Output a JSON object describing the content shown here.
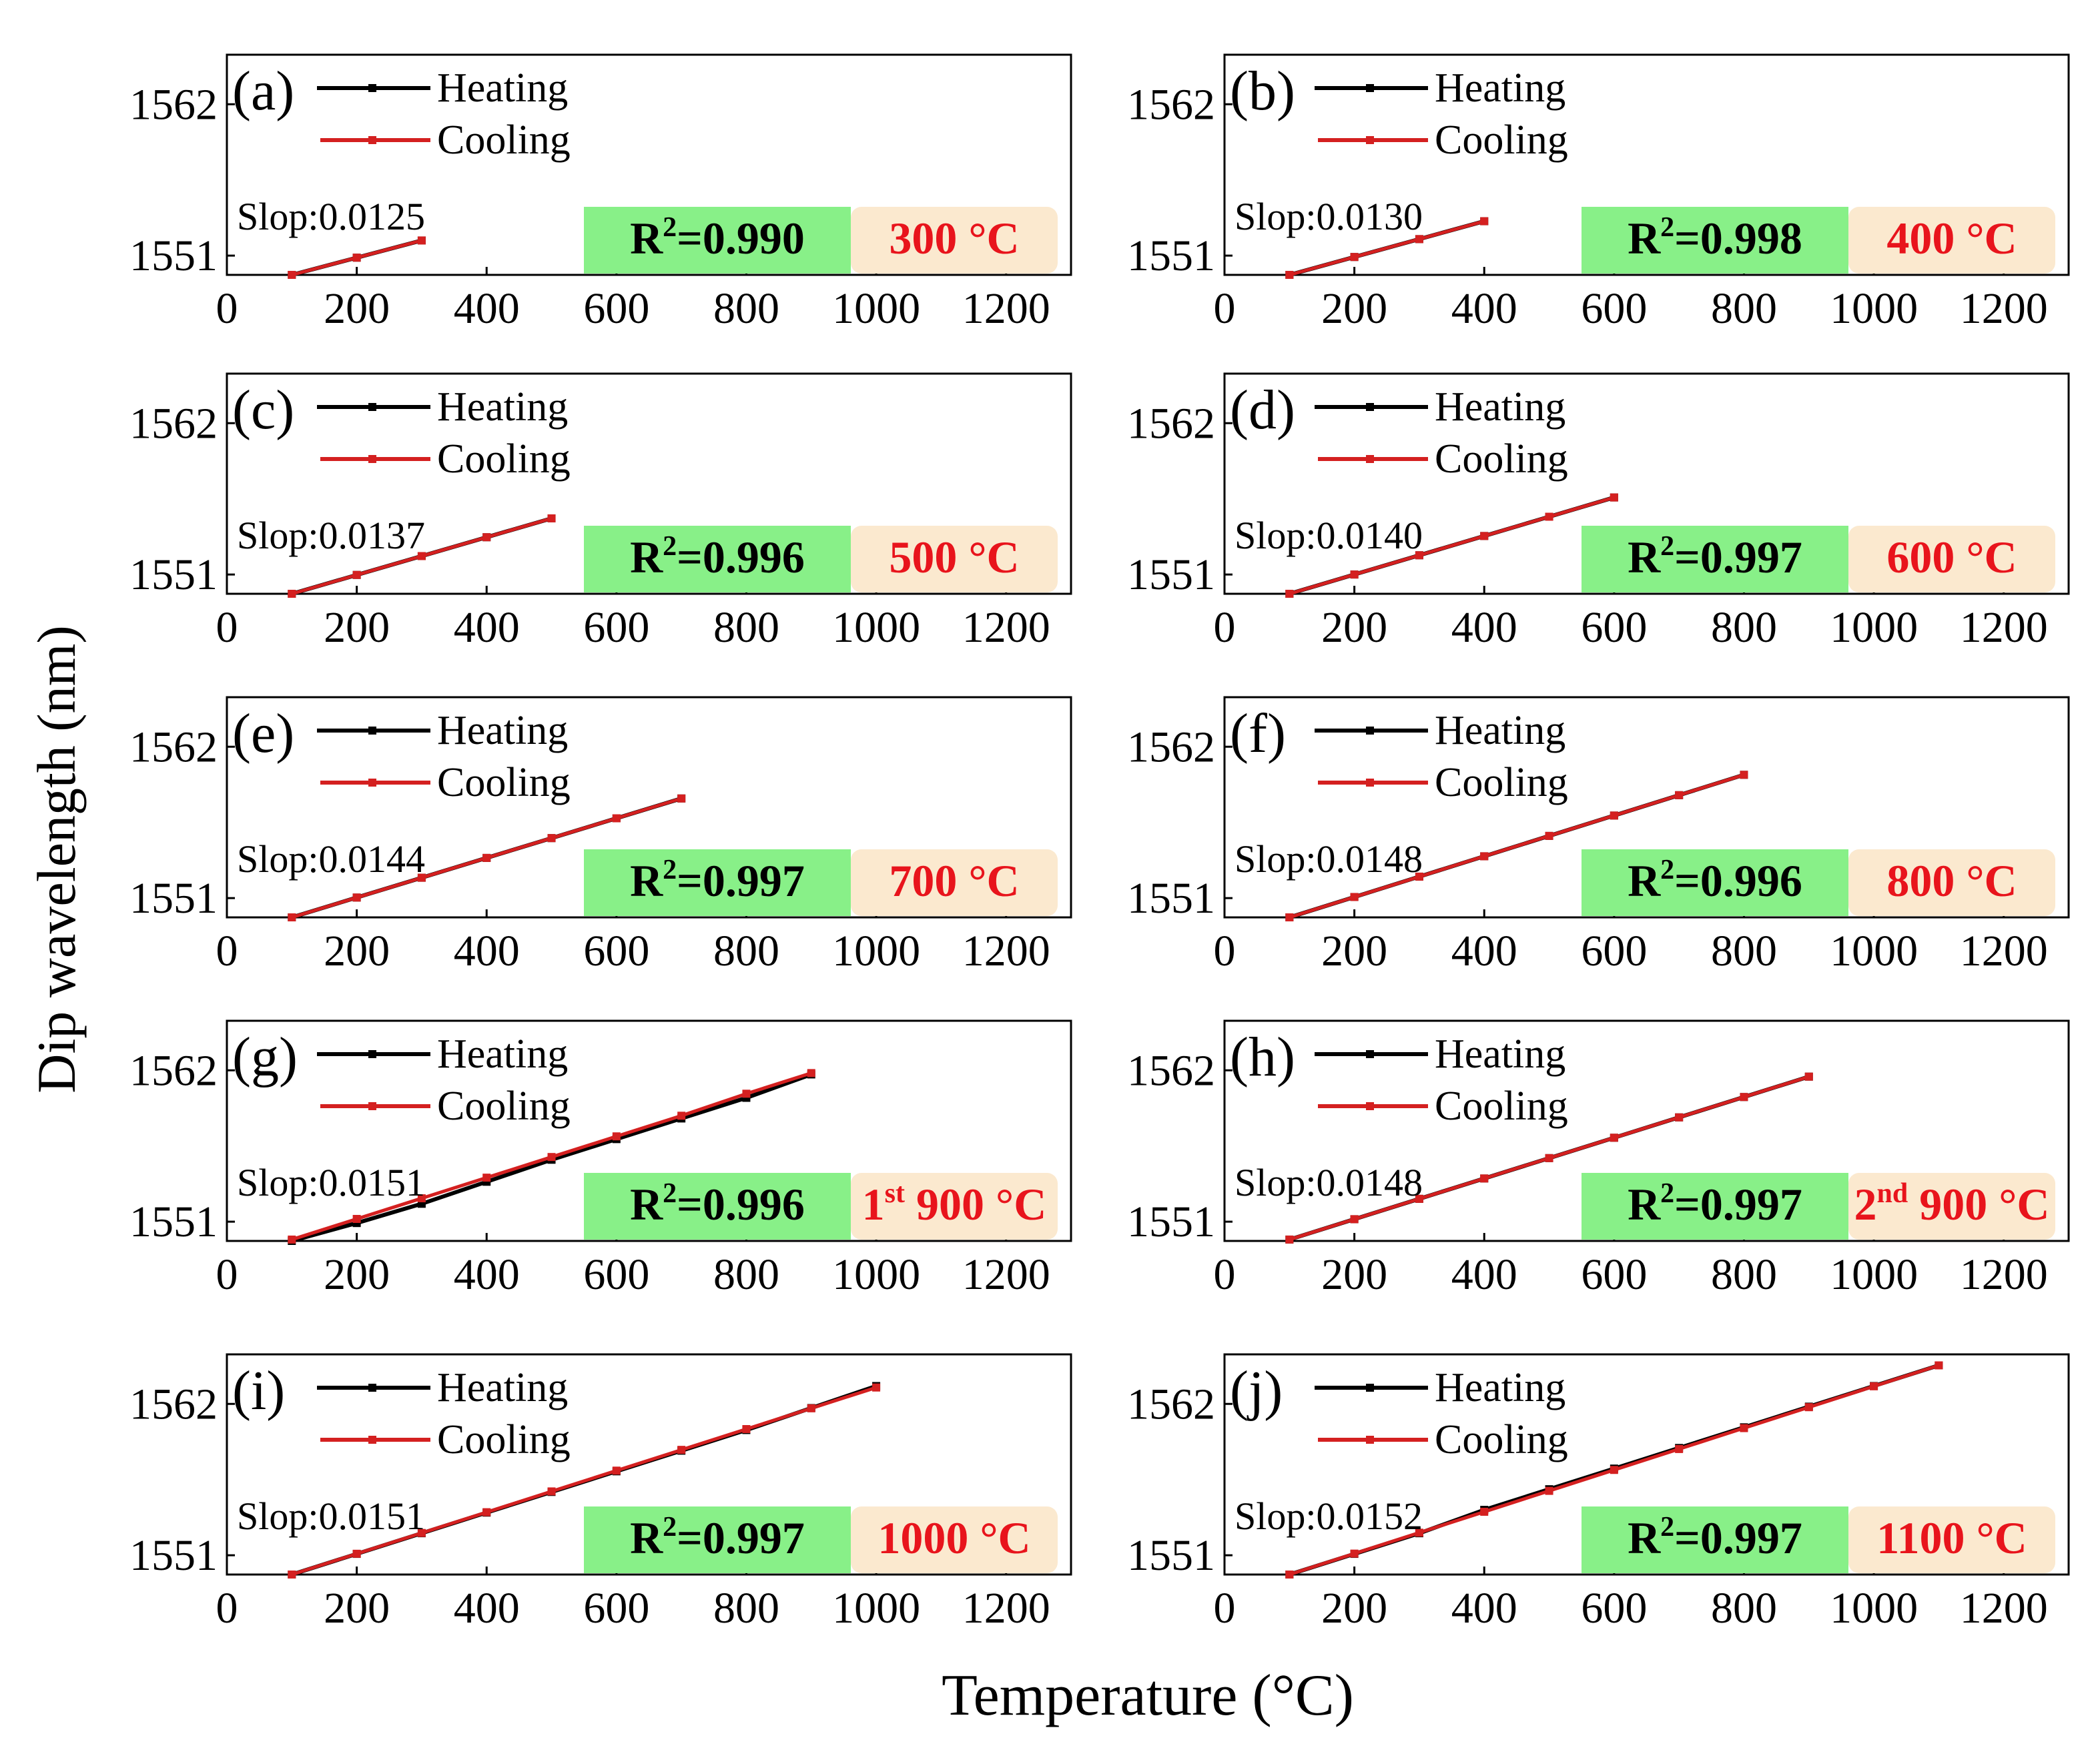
{
  "figure": {
    "ylabel": "Dip wavelength (nm)",
    "xlabel": "Temperature (°C)",
    "colors": {
      "heating": "#000000",
      "cooling": "#d42020",
      "r2_box": "#88f088",
      "temp_box": "#fbe9cf",
      "temp_text": "#e8141c"
    }
  },
  "chart_data": [
    {
      "type": "line",
      "panel": "(a)",
      "xlim": [
        0,
        1300
      ],
      "ylim": [
        1549.6,
        1565.6
      ],
      "xticks": [
        "0",
        "200",
        "400",
        "600",
        "800",
        "1000",
        "1200"
      ],
      "yticks": [
        "1551",
        "1562"
      ],
      "legend": [
        "Heating",
        "Cooling"
      ],
      "slope_label": "Slop:0.0125",
      "r2_base": "R",
      "r2_sup": "2",
      "r2_value": "=0.990",
      "temp_sup": "",
      "temp_label": "300 °C",
      "series": [
        {
          "name": "Heating",
          "x": [
            100,
            200,
            300
          ],
          "y": [
            1549.6,
            1550.85,
            1552.1
          ]
        },
        {
          "name": "Cooling",
          "x": [
            100,
            200,
            300
          ],
          "y": [
            1549.6,
            1550.85,
            1552.1
          ]
        }
      ]
    },
    {
      "type": "line",
      "panel": "(b)",
      "xlim": [
        0,
        1300
      ],
      "ylim": [
        1549.6,
        1565.6
      ],
      "xticks": [
        "0",
        "200",
        "400",
        "600",
        "800",
        "1000",
        "1200"
      ],
      "yticks": [
        "1551",
        "1562"
      ],
      "legend": [
        "Heating",
        "Cooling"
      ],
      "slope_label": "Slop:0.0130",
      "r2_base": "R",
      "r2_sup": "2",
      "r2_value": "=0.998",
      "temp_sup": "",
      "temp_label": "400 °C",
      "series": [
        {
          "name": "Heating",
          "x": [
            100,
            200,
            300,
            400
          ],
          "y": [
            1549.6,
            1550.9,
            1552.2,
            1553.5
          ]
        },
        {
          "name": "Cooling",
          "x": [
            100,
            200,
            300,
            400
          ],
          "y": [
            1549.6,
            1550.9,
            1552.2,
            1553.5
          ]
        }
      ]
    },
    {
      "type": "line",
      "panel": "(c)",
      "xlim": [
        0,
        1300
      ],
      "ylim": [
        1549.6,
        1565.6
      ],
      "xticks": [
        "0",
        "200",
        "400",
        "600",
        "800",
        "1000",
        "1200"
      ],
      "yticks": [
        "1551",
        "1562"
      ],
      "legend": [
        "Heating",
        "Cooling"
      ],
      "slope_label": "Slop:0.0137",
      "r2_base": "R",
      "r2_sup": "2",
      "r2_value": "=0.996",
      "temp_sup": "",
      "temp_label": "500 °C",
      "series": [
        {
          "name": "Heating",
          "x": [
            100,
            200,
            300,
            400,
            500
          ],
          "y": [
            1549.6,
            1550.97,
            1552.34,
            1553.71,
            1555.08
          ]
        },
        {
          "name": "Cooling",
          "x": [
            100,
            200,
            300,
            400,
            500
          ],
          "y": [
            1549.6,
            1550.97,
            1552.34,
            1553.71,
            1555.08
          ]
        }
      ]
    },
    {
      "type": "line",
      "panel": "(d)",
      "xlim": [
        0,
        1300
      ],
      "ylim": [
        1549.6,
        1565.6
      ],
      "xticks": [
        "0",
        "200",
        "400",
        "600",
        "800",
        "1000",
        "1200"
      ],
      "yticks": [
        "1551",
        "1562"
      ],
      "legend": [
        "Heating",
        "Cooling"
      ],
      "slope_label": "Slop:0.0140",
      "r2_base": "R",
      "r2_sup": "2",
      "r2_value": "=0.997",
      "temp_sup": "",
      "temp_label": "600 °C",
      "series": [
        {
          "name": "Heating",
          "x": [
            100,
            200,
            300,
            400,
            500,
            600
          ],
          "y": [
            1549.6,
            1551.0,
            1552.4,
            1553.8,
            1555.2,
            1556.6
          ]
        },
        {
          "name": "Cooling",
          "x": [
            100,
            200,
            300,
            400,
            500,
            600
          ],
          "y": [
            1549.6,
            1551.0,
            1552.4,
            1553.8,
            1555.2,
            1556.6
          ]
        }
      ]
    },
    {
      "type": "line",
      "panel": "(e)",
      "xlim": [
        0,
        1300
      ],
      "ylim": [
        1549.6,
        1565.6
      ],
      "xticks": [
        "0",
        "200",
        "400",
        "600",
        "800",
        "1000",
        "1200"
      ],
      "yticks": [
        "1551",
        "1562"
      ],
      "legend": [
        "Heating",
        "Cooling"
      ],
      "slope_label": "Slop:0.0144",
      "r2_base": "R",
      "r2_sup": "2",
      "r2_value": "=0.997",
      "temp_sup": "",
      "temp_label": "700 °C",
      "series": [
        {
          "name": "Heating",
          "x": [
            100,
            200,
            300,
            400,
            500,
            600,
            700
          ],
          "y": [
            1549.6,
            1551.04,
            1552.48,
            1553.92,
            1555.36,
            1556.8,
            1558.24
          ]
        },
        {
          "name": "Cooling",
          "x": [
            100,
            200,
            300,
            400,
            500,
            600,
            700
          ],
          "y": [
            1549.6,
            1551.04,
            1552.48,
            1553.92,
            1555.36,
            1556.8,
            1558.24
          ]
        }
      ]
    },
    {
      "type": "line",
      "panel": "(f)",
      "xlim": [
        0,
        1300
      ],
      "ylim": [
        1549.6,
        1565.6
      ],
      "xticks": [
        "0",
        "200",
        "400",
        "600",
        "800",
        "1000",
        "1200"
      ],
      "yticks": [
        "1551",
        "1562"
      ],
      "legend": [
        "Heating",
        "Cooling"
      ],
      "slope_label": "Slop:0.0148",
      "r2_base": "R",
      "r2_sup": "2",
      "r2_value": "=0.996",
      "temp_sup": "",
      "temp_label": "800 °C",
      "series": [
        {
          "name": "Heating",
          "x": [
            100,
            200,
            300,
            400,
            500,
            600,
            700,
            800
          ],
          "y": [
            1549.6,
            1551.08,
            1552.56,
            1554.04,
            1555.52,
            1557.0,
            1558.48,
            1559.96
          ]
        },
        {
          "name": "Cooling",
          "x": [
            100,
            200,
            300,
            400,
            500,
            600,
            700,
            800
          ],
          "y": [
            1549.6,
            1551.08,
            1552.56,
            1554.04,
            1555.52,
            1557.0,
            1558.48,
            1559.96
          ]
        }
      ]
    },
    {
      "type": "line",
      "panel": "(g)",
      "xlim": [
        0,
        1300
      ],
      "ylim": [
        1549.6,
        1565.6
      ],
      "xticks": [
        "0",
        "200",
        "400",
        "600",
        "800",
        "1000",
        "1200"
      ],
      "yticks": [
        "1551",
        "1562"
      ],
      "legend": [
        "Heating",
        "Cooling"
      ],
      "slope_label": "Slop:0.0151",
      "r2_base": "R",
      "r2_sup": "2",
      "r2_value": "=0.996",
      "temp_sup": "st",
      "temp_prefix": "1",
      "temp_label": " 900 °C",
      "series": [
        {
          "name": "Heating",
          "x": [
            100,
            200,
            300,
            400,
            500,
            600,
            700,
            800,
            900
          ],
          "y": [
            1549.6,
            1550.9,
            1552.3,
            1553.9,
            1555.5,
            1557.0,
            1558.5,
            1560.0,
            1561.7
          ]
        },
        {
          "name": "Cooling",
          "x": [
            100,
            200,
            300,
            400,
            500,
            600,
            700,
            800,
            900
          ],
          "y": [
            1549.7,
            1551.2,
            1552.7,
            1554.2,
            1555.7,
            1557.2,
            1558.7,
            1560.3,
            1561.8
          ]
        }
      ]
    },
    {
      "type": "line",
      "panel": "(h)",
      "xlim": [
        0,
        1300
      ],
      "ylim": [
        1549.6,
        1565.6
      ],
      "xticks": [
        "0",
        "200",
        "400",
        "600",
        "800",
        "1000",
        "1200"
      ],
      "yticks": [
        "1551",
        "1562"
      ],
      "legend": [
        "Heating",
        "Cooling"
      ],
      "slope_label": "Slop:0.0148",
      "r2_base": "R",
      "r2_sup": "2",
      "r2_value": "=0.997",
      "temp_sup": "nd",
      "temp_prefix": "2",
      "temp_label": " 900 °C",
      "series": [
        {
          "name": "Heating",
          "x": [
            100,
            200,
            300,
            400,
            500,
            600,
            700,
            800,
            900
          ],
          "y": [
            1549.7,
            1551.18,
            1552.66,
            1554.14,
            1555.62,
            1557.1,
            1558.58,
            1560.06,
            1561.54
          ]
        },
        {
          "name": "Cooling",
          "x": [
            100,
            200,
            300,
            400,
            500,
            600,
            700,
            800,
            900
          ],
          "y": [
            1549.7,
            1551.18,
            1552.66,
            1554.14,
            1555.62,
            1557.1,
            1558.58,
            1560.06,
            1561.54
          ]
        }
      ]
    },
    {
      "type": "line",
      "panel": "(i)",
      "xlim": [
        0,
        1300
      ],
      "ylim": [
        1549.6,
        1565.6
      ],
      "xticks": [
        "0",
        "200",
        "400",
        "600",
        "800",
        "1000",
        "1200"
      ],
      "yticks": [
        "1551",
        "1562"
      ],
      "legend": [
        "Heating",
        "Cooling"
      ],
      "slope_label": "Slop:0.0151",
      "r2_base": "R",
      "r2_sup": "2",
      "r2_value": "=0.997",
      "temp_sup": "",
      "temp_label": "1000 °C",
      "series": [
        {
          "name": "Heating",
          "x": [
            100,
            200,
            300,
            400,
            500,
            600,
            700,
            800,
            900,
            1000
          ],
          "y": [
            1549.6,
            1551.1,
            1552.6,
            1554.1,
            1555.6,
            1557.1,
            1558.6,
            1560.1,
            1561.7,
            1563.3
          ]
        },
        {
          "name": "Cooling",
          "x": [
            100,
            200,
            300,
            400,
            500,
            600,
            700,
            800,
            900,
            1000
          ],
          "y": [
            1549.6,
            1551.11,
            1552.62,
            1554.13,
            1555.64,
            1557.15,
            1558.66,
            1560.17,
            1561.68,
            1563.19
          ]
        }
      ]
    },
    {
      "type": "line",
      "panel": "(j)",
      "xlim": [
        0,
        1300
      ],
      "ylim": [
        1549.6,
        1565.6
      ],
      "xticks": [
        "0",
        "200",
        "400",
        "600",
        "800",
        "1000",
        "1200"
      ],
      "yticks": [
        "1551",
        "1562"
      ],
      "legend": [
        "Heating",
        "Cooling"
      ],
      "slope_label": "Slop:0.0152",
      "r2_base": "R",
      "r2_sup": "2",
      "r2_value": "=0.997",
      "temp_sup": "",
      "temp_label": "1100 °C",
      "series": [
        {
          "name": "Heating",
          "x": [
            100,
            200,
            300,
            400,
            500,
            600,
            700,
            800,
            900,
            1000,
            1100
          ],
          "y": [
            1549.6,
            1551.1,
            1552.6,
            1554.3,
            1555.8,
            1557.3,
            1558.8,
            1560.3,
            1561.8,
            1563.3,
            1564.8
          ]
        },
        {
          "name": "Cooling",
          "x": [
            100,
            200,
            300,
            400,
            500,
            600,
            700,
            800,
            900,
            1000,
            1100
          ],
          "y": [
            1549.6,
            1551.12,
            1552.64,
            1554.16,
            1555.68,
            1557.2,
            1558.72,
            1560.24,
            1561.76,
            1563.28,
            1564.8
          ]
        }
      ]
    }
  ]
}
